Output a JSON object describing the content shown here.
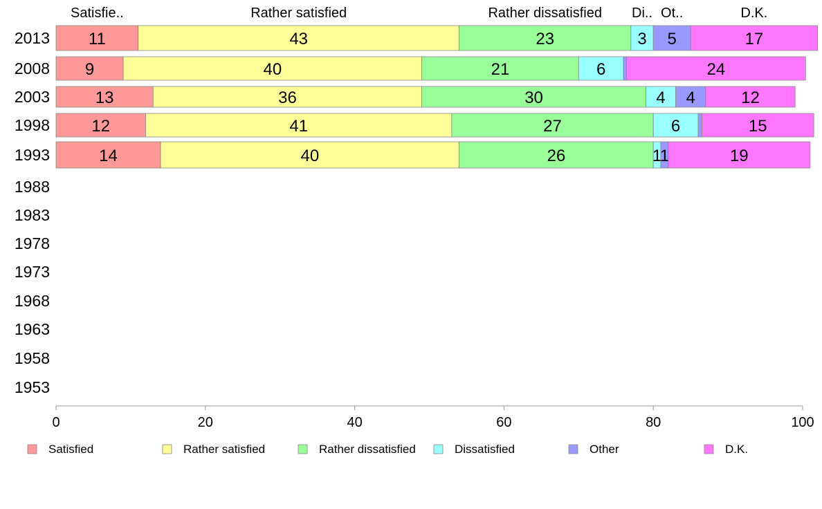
{
  "chart_data": {
    "type": "bar",
    "orientation": "horizontal",
    "stacked": true,
    "categories": [
      "2013",
      "2008",
      "2003",
      "1998",
      "1993",
      "1988",
      "1983",
      "1978",
      "1973",
      "1968",
      "1963",
      "1958",
      "1953"
    ],
    "series": [
      {
        "name": "Satisfied",
        "color": "#ff9999",
        "values": [
          11,
          9,
          13,
          12,
          14,
          null,
          null,
          null,
          null,
          null,
          null,
          null,
          null
        ]
      },
      {
        "name": "Rather satisfied",
        "color": "#ffff99",
        "values": [
          43,
          40,
          36,
          41,
          40,
          null,
          null,
          null,
          null,
          null,
          null,
          null,
          null
        ]
      },
      {
        "name": "Rather dissatisfied",
        "color": "#99ff99",
        "values": [
          23,
          21,
          30,
          27,
          26,
          null,
          null,
          null,
          null,
          null,
          null,
          null,
          null
        ]
      },
      {
        "name": "Dissatisfied",
        "color": "#99ffff",
        "values": [
          3,
          6,
          4,
          6,
          1,
          null,
          null,
          null,
          null,
          null,
          null,
          null,
          null
        ]
      },
      {
        "name": "Other",
        "color": "#9999ff",
        "values": [
          5,
          0.4,
          4,
          0.5,
          1,
          null,
          null,
          null,
          null,
          null,
          null,
          null,
          null
        ]
      },
      {
        "name": "D.K.",
        "color": "#ff77ff",
        "values": [
          17,
          24,
          12,
          15,
          19,
          null,
          null,
          null,
          null,
          null,
          null,
          null,
          null
        ]
      }
    ],
    "top_labels": [
      "Satisfie..",
      "Rather satisfied",
      "Rather dissatisfied",
      "Di..",
      "Ot..",
      "D.K."
    ],
    "xlim": [
      0,
      100
    ],
    "xticks": [
      0,
      20,
      40,
      60,
      80,
      100
    ],
    "grid": false,
    "legend_position": "bottom"
  }
}
